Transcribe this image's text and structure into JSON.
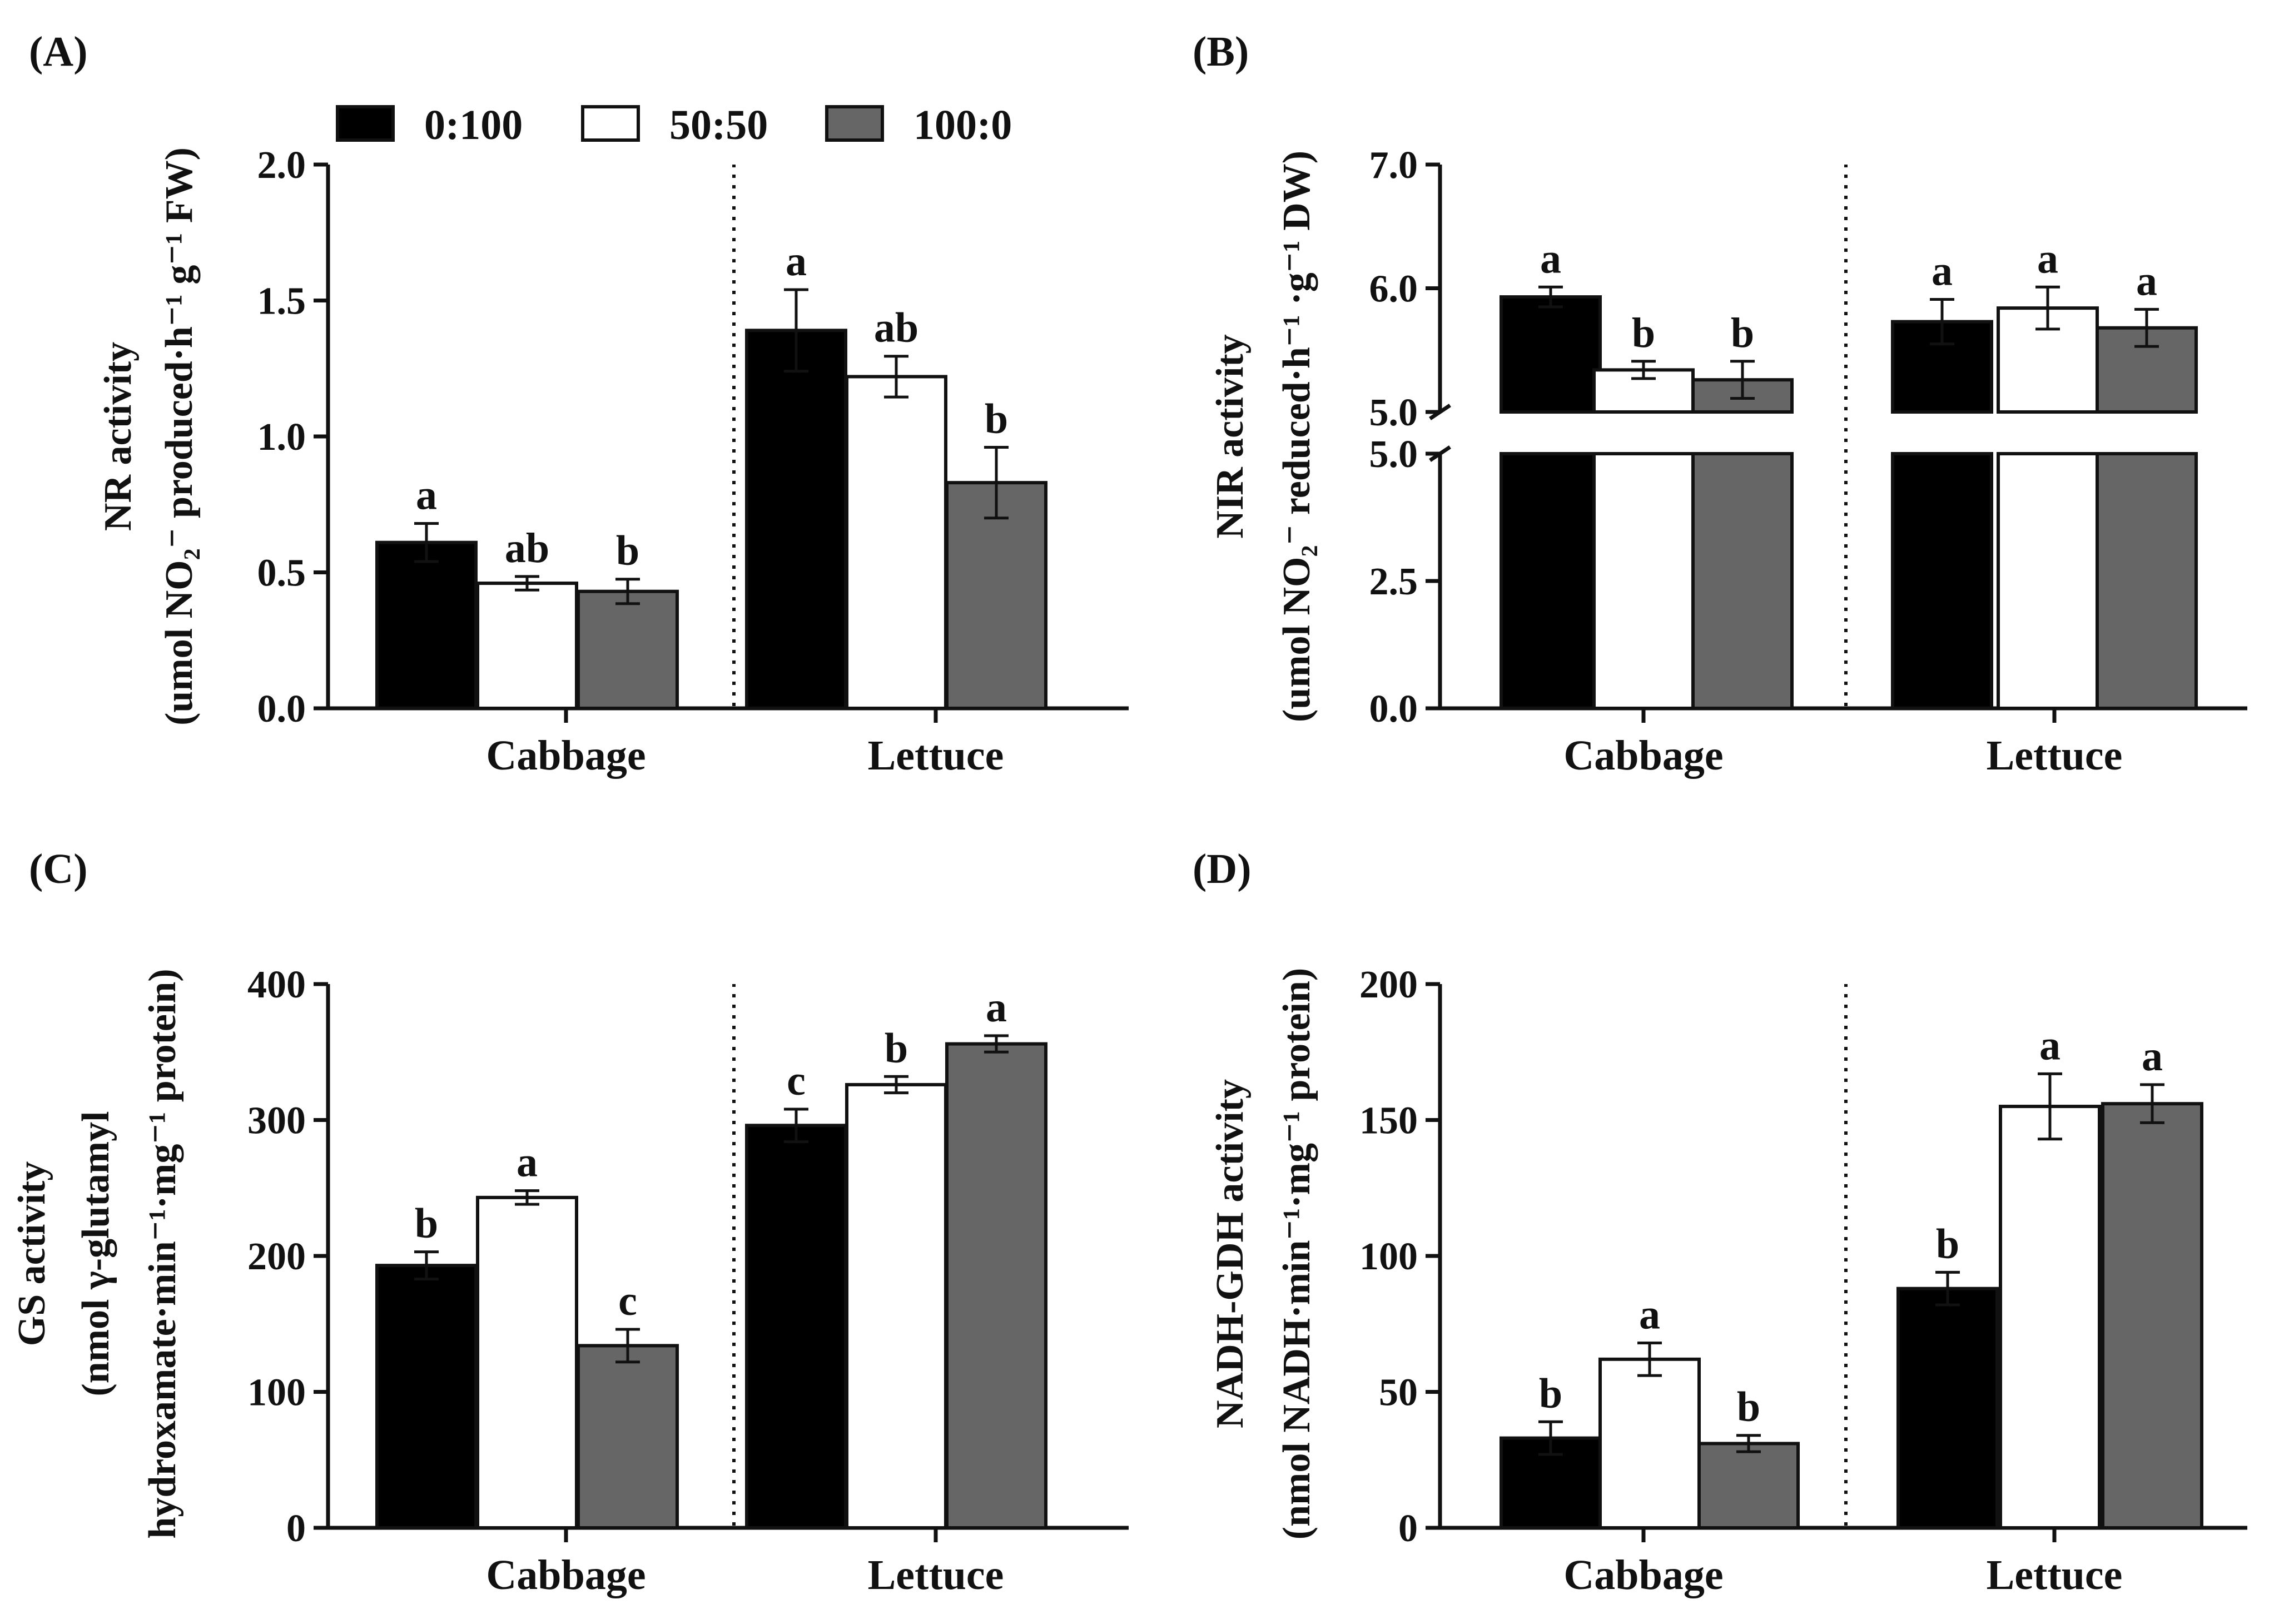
{
  "colors": {
    "0:100": "#000000",
    "50:50": "#ffffff",
    "100:0": "#666666",
    "axis": "#111111"
  },
  "legend": {
    "items": [
      {
        "label": "0:100",
        "color": "#000000"
      },
      {
        "label": "50:50",
        "color": "#ffffff"
      },
      {
        "label": "100:0",
        "color": "#666666"
      }
    ]
  },
  "chart_data": [
    {
      "panel": "(A)",
      "type": "bar",
      "categories": [
        "Cabbage",
        "Lettuce"
      ],
      "ylabel_lines": [
        "NR activity",
        "(umol NO₂⁻ produced·h⁻¹ g⁻¹ FW)"
      ],
      "ylim": [
        0,
        2.0
      ],
      "yticks": [
        "0.0",
        "0.5",
        "1.0",
        "1.5",
        "2.0"
      ],
      "series": [
        {
          "name": "0:100",
          "values": [
            0.61,
            1.39
          ],
          "errors": [
            0.07,
            0.15
          ],
          "letters": [
            "a",
            "a"
          ]
        },
        {
          "name": "50:50",
          "values": [
            0.46,
            1.22
          ],
          "errors": [
            0.025,
            0.075
          ],
          "letters": [
            "ab",
            "ab"
          ]
        },
        {
          "name": "100:0",
          "values": [
            0.43,
            0.83
          ],
          "errors": [
            0.045,
            0.13
          ],
          "letters": [
            "b",
            "b"
          ]
        }
      ]
    },
    {
      "panel": "(B)",
      "type": "bar",
      "categories": [
        "Cabbage",
        "Lettuce"
      ],
      "ylabel_lines": [
        "NIR activity",
        "(umol NO₂⁻ reduced·h⁻¹ ·g⁻¹ DW)"
      ],
      "ylim": [
        0,
        7.0
      ],
      "axis_break": [
        5.0,
        5.0
      ],
      "lower_yticks": [
        "0.0",
        "2.5",
        "5.0"
      ],
      "upper_yticks": [
        "5.0",
        "6.0",
        "7.0"
      ],
      "series": [
        {
          "name": "0:100",
          "values": [
            5.93,
            5.73
          ],
          "errors": [
            0.08,
            0.18
          ],
          "letters": [
            "a",
            "a"
          ]
        },
        {
          "name": "50:50",
          "values": [
            5.34,
            5.84
          ],
          "errors": [
            0.07,
            0.17
          ],
          "letters": [
            "b",
            "a"
          ]
        },
        {
          "name": "100:0",
          "values": [
            5.26,
            5.68
          ],
          "errors": [
            0.15,
            0.15
          ],
          "letters": [
            "b",
            "a"
          ]
        }
      ]
    },
    {
      "panel": "(C)",
      "type": "bar",
      "categories": [
        "Cabbage",
        "Lettuce"
      ],
      "ylabel_lines": [
        "GS activity",
        "(nmol γ-glutamyl",
        "hydroxamate·min⁻¹·mg⁻¹ protein)"
      ],
      "ylim": [
        0,
        400
      ],
      "yticks": [
        "0",
        "100",
        "200",
        "300",
        "400"
      ],
      "series": [
        {
          "name": "0:100",
          "values": [
            193,
            296
          ],
          "errors": [
            10,
            12
          ],
          "letters": [
            "b",
            "c"
          ]
        },
        {
          "name": "50:50",
          "values": [
            243,
            326
          ],
          "errors": [
            5,
            6
          ],
          "letters": [
            "a",
            "b"
          ]
        },
        {
          "name": "100:0",
          "values": [
            134,
            356
          ],
          "errors": [
            12,
            6
          ],
          "letters": [
            "c",
            "a"
          ]
        }
      ]
    },
    {
      "panel": "(D)",
      "type": "bar",
      "categories": [
        "Cabbage",
        "Lettuce"
      ],
      "ylabel_lines": [
        "NADH-GDH activity",
        "(nmol NADH·min⁻¹·mg⁻¹ protein)"
      ],
      "ylim": [
        0,
        200
      ],
      "yticks": [
        "0",
        "50",
        "100",
        "150",
        "200"
      ],
      "series": [
        {
          "name": "0:100",
          "values": [
            33,
            88
          ],
          "errors": [
            6,
            6
          ],
          "letters": [
            "b",
            "b"
          ]
        },
        {
          "name": "50:50",
          "values": [
            62,
            155
          ],
          "errors": [
            6,
            12
          ],
          "letters": [
            "a",
            "a"
          ]
        },
        {
          "name": "100:0",
          "values": [
            31,
            156
          ],
          "errors": [
            3,
            7
          ],
          "letters": [
            "b",
            "a"
          ]
        }
      ]
    }
  ]
}
